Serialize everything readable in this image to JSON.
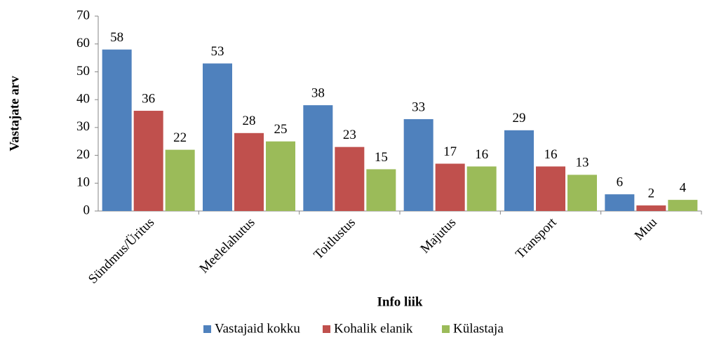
{
  "chart_data": {
    "type": "bar",
    "categories": [
      "Sündmus/Üritus",
      "Meelelahutus",
      "Toitlustus",
      "Majutus",
      "Transport",
      "Muu"
    ],
    "series": [
      {
        "name": "Vastajaid kokku",
        "color": "#4f81bd",
        "values": [
          58,
          53,
          38,
          33,
          29,
          6
        ]
      },
      {
        "name": "Kohalik elanik",
        "color": "#c0504d",
        "values": [
          36,
          28,
          23,
          17,
          16,
          2
        ]
      },
      {
        "name": "Külastaja",
        "color": "#9bbb59",
        "values": [
          22,
          25,
          15,
          16,
          13,
          4
        ]
      }
    ],
    "xlabel": "Info liik",
    "ylabel": "Vastajate arv",
    "ylim": [
      0,
      70
    ],
    "yticks": [
      0,
      10,
      20,
      30,
      40,
      50,
      60,
      70
    ],
    "grid": false,
    "legend": "bottom"
  }
}
